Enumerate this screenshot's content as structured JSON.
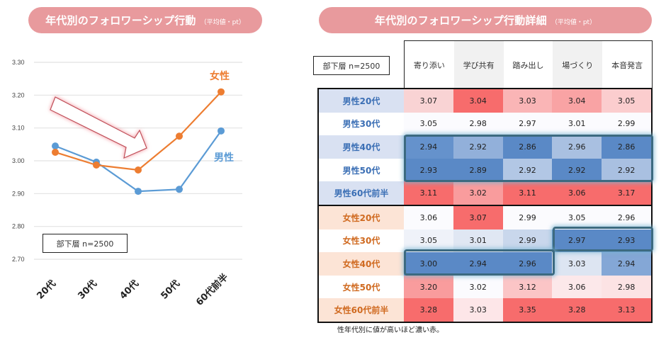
{
  "left_panel": {
    "title": "年代別のフォロワーシップ行動",
    "title_suffix": "（平均値・pt）",
    "sample_label": "部下層  n=2500"
  },
  "right_panel": {
    "title": "年代別のフォロワーシップ行動詳細",
    "title_suffix": "（平均値・pt）",
    "sample_label": "部下層  n=2500",
    "columns": [
      "寄り添い",
      "学び共有",
      "踏み出し",
      "場づくり",
      "本音発言"
    ],
    "male_rows": [
      {
        "label": "男性20代",
        "values": [
          "3.07",
          "3.04",
          "3.03",
          "3.04",
          "3.05"
        ],
        "colors": [
          "#f9d3d4",
          "#f76c6c",
          "#fab5b6",
          "#f9a3a4",
          "#fbcdce"
        ],
        "label_bg": "#d9e1f2"
      },
      {
        "label": "男性30代",
        "values": [
          "3.05",
          "2.98",
          "2.97",
          "3.01",
          "2.99"
        ],
        "colors": [
          "#fbfbfe",
          "#fbfbfe",
          "#fbfbfe",
          "#fbfbfe",
          "#fbfbfe"
        ],
        "label_bg": "#ffffff"
      },
      {
        "label": "男性40代",
        "values": [
          "2.94",
          "2.92",
          "2.86",
          "2.96",
          "2.86"
        ],
        "colors": [
          "#6592cc",
          "#92b0da",
          "#5a89c6",
          "#a9c0e1",
          "#5a89c6"
        ],
        "label_bg": "#d9e1f2"
      },
      {
        "label": "男性50代",
        "values": [
          "2.93",
          "2.89",
          "2.92",
          "2.92",
          "2.92"
        ],
        "colors": [
          "#5a89c6",
          "#5a89c6",
          "#b2c7e5",
          "#5a89c6",
          "#a9c0e1"
        ],
        "label_bg": "#ffffff"
      },
      {
        "label": "男性60代前半",
        "values": [
          "3.11",
          "3.02",
          "3.11",
          "3.06",
          "3.17"
        ],
        "colors": [
          "#f76c6c",
          "#f99c9d",
          "#f76c6c",
          "#f76c6c",
          "#f76c6c"
        ],
        "label_bg": "#d9e1f2"
      }
    ],
    "female_rows": [
      {
        "label": "女性20代",
        "values": [
          "3.06",
          "3.07",
          "2.99",
          "3.05",
          "2.96"
        ],
        "colors": [
          "#fbfbfe",
          "#f76c6c",
          "#fbfbfe",
          "#fbfbfe",
          "#fbfbfe"
        ],
        "label_bg": "#fce4d6"
      },
      {
        "label": "女性30代",
        "values": [
          "3.05",
          "3.01",
          "2.99",
          "2.97",
          "2.93"
        ],
        "colors": [
          "#eff2f9",
          "#e0e7f3",
          "#c9d7ec",
          "#5a89c6",
          "#5a89c6"
        ],
        "label_bg": "#ffffff"
      },
      {
        "label": "女性40代",
        "values": [
          "3.00",
          "2.94",
          "2.96",
          "3.03",
          "2.94"
        ],
        "colors": [
          "#5a89c6",
          "#5a89c6",
          "#5a89c6",
          "#dde5f2",
          "#84a7d6"
        ],
        "label_bg": "#fce4d6"
      },
      {
        "label": "女性50代",
        "values": [
          "3.20",
          "3.02",
          "3.12",
          "3.06",
          "2.98"
        ],
        "colors": [
          "#f99c9d",
          "#fbfbfe",
          "#fbc5c6",
          "#fce8ea",
          "#fce3e4"
        ],
        "label_bg": "#ffffff"
      },
      {
        "label": "女性60代前半",
        "values": [
          "3.28",
          "3.03",
          "3.35",
          "3.28",
          "3.13"
        ],
        "colors": [
          "#f76c6c",
          "#fde6e8",
          "#f76c6c",
          "#f76c6c",
          "#f76c6c"
        ],
        "label_bg": "#fce4d6"
      }
    ],
    "note": "性年代別に値が高いほど濃い赤。"
  },
  "chart_data": {
    "type": "line",
    "title": "年代別のフォロワーシップ行動（平均値・pt）",
    "categories": [
      "20代",
      "30代",
      "40代",
      "50代",
      "60代前半"
    ],
    "series": [
      {
        "name": "男性",
        "color": "#5b9bd5",
        "values": [
          3.045,
          2.996,
          2.907,
          2.913,
          3.091
        ]
      },
      {
        "name": "女性",
        "color": "#ed7d31",
        "values": [
          3.026,
          2.987,
          2.972,
          3.075,
          3.21
        ]
      }
    ],
    "ylim": [
      2.7,
      3.3
    ],
    "yticks": [
      "3.30",
      "3.20",
      "3.10",
      "3.00",
      "2.90",
      "2.80",
      "2.70"
    ],
    "grid": true,
    "annotation": "downward arrow from 20代 to 40代"
  }
}
